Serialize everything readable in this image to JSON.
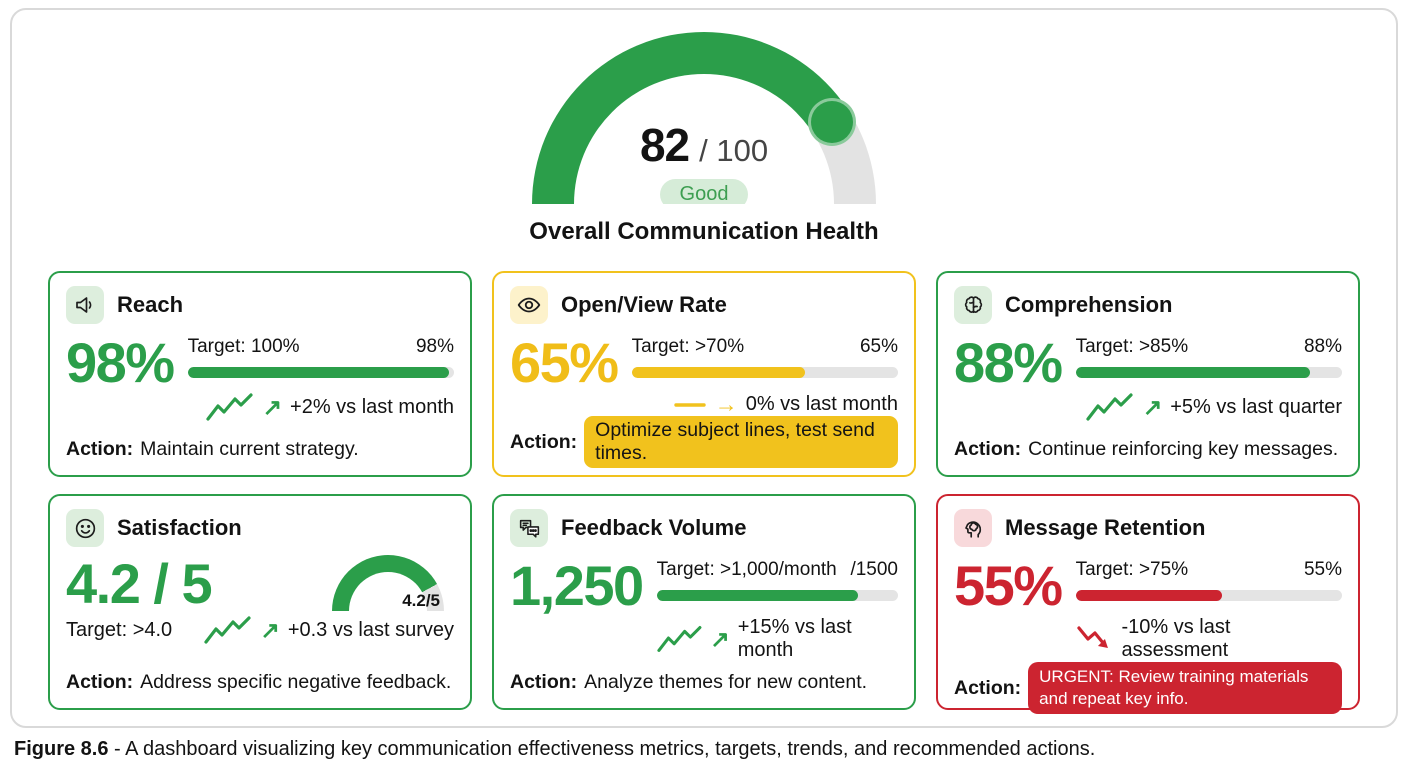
{
  "overall": {
    "score_display": "82",
    "total_display": "/ 100",
    "badge": "Good",
    "title": "Overall Communication Health",
    "percent": 82
  },
  "cards": [
    {
      "title": "Reach",
      "icon": "megaphone-icon",
      "value": "98%",
      "target_label": "Target: 100%",
      "current_label": "98%",
      "progress": 98,
      "trend": "up",
      "trend_label": "+2% vs last month",
      "action_label": "Action:",
      "action_text": "Maintain current strategy.",
      "style": "green"
    },
    {
      "title": "Open/View Rate",
      "icon": "eye-icon",
      "value": "65%",
      "target_label": "Target: >70%",
      "current_label": "65%",
      "progress": 65,
      "trend": "flat",
      "trend_label": "0% vs last month",
      "action_label": "Action:",
      "action_text": "Optimize subject lines, test send times.",
      "style": "yellow"
    },
    {
      "title": "Comprehension",
      "icon": "brain-icon",
      "value": "88%",
      "target_label": "Target: >85%",
      "current_label": "88%",
      "progress": 88,
      "trend": "up",
      "trend_label": "+5% vs last quarter",
      "action_label": "Action:",
      "action_text": "Continue reinforcing key messages.",
      "style": "green"
    },
    {
      "title": "Satisfaction",
      "icon": "smiley-icon",
      "value": "4.2 / 5",
      "target_label": "Target: >4.0",
      "mini_gauge_label": "4.2/5",
      "progress": 84,
      "trend": "up",
      "trend_label": "+0.3 vs last survey",
      "action_label": "Action:",
      "action_text": "Address specific negative feedback.",
      "style": "green"
    },
    {
      "title": "Feedback Volume",
      "icon": "chat-bubbles-icon",
      "value": "1,250",
      "target_label": "Target: >1,000/month",
      "current_label": "/1500",
      "progress": 83.3,
      "trend": "up",
      "trend_label": "+15% vs last month",
      "action_label": "Action:",
      "action_text": "Analyze themes for new content.",
      "style": "green"
    },
    {
      "title": "Message Retention",
      "icon": "head-brain-icon",
      "value": "55%",
      "target_label": "Target: >75%",
      "current_label": "55%",
      "progress": 55,
      "trend": "down",
      "trend_label": "-10% vs last assessment",
      "action_label": "Action:",
      "action_text": "URGENT: Review training materials and repeat key info.",
      "style": "red"
    }
  ],
  "caption": {
    "label": "Figure 8.6",
    "text": " - A dashboard visualizing key communication effectiveness metrics, targets, trends, and recommended actions."
  },
  "colors": {
    "green": "#2b9e4a",
    "yellow": "#f1c21d",
    "red": "#cc2430",
    "track": "#e4e4e4",
    "badge_bg": "#d6ecd8",
    "badge_text": "#3d9e51"
  },
  "chart_data": [
    {
      "type": "gauge",
      "title": "Overall Communication Health",
      "value": 82,
      "max": 100,
      "status_label": "Good",
      "fill_color": "#2b9e4a"
    },
    {
      "type": "bar",
      "title": "Communication effectiveness KPIs",
      "categories": [
        "Reach",
        "Open/View Rate",
        "Comprehension",
        "Satisfaction",
        "Feedback Volume",
        "Message Retention"
      ],
      "values": [
        98,
        65,
        88,
        4.2,
        1250,
        55
      ],
      "value_displays": [
        "98%",
        "65%",
        "88%",
        "4.2 / 5",
        "1,250",
        "55%"
      ],
      "progress_percent": [
        98,
        65,
        88,
        84,
        83.3,
        55
      ],
      "targets": [
        "100%",
        ">70%",
        ">85%",
        ">4.0",
        ">1,000/month (/1500)",
        ">75%"
      ],
      "trends": [
        "+2% vs last month",
        "0% vs last month",
        "+5% vs last quarter",
        "+0.3 vs last survey",
        "+15% vs last month",
        "-10% vs last assessment"
      ],
      "statuses": [
        "green",
        "yellow",
        "green",
        "green",
        "green",
        "red"
      ],
      "actions": [
        "Maintain current strategy.",
        "Optimize subject lines, test send times.",
        "Continue reinforcing key messages.",
        "Address specific negative feedback.",
        "Analyze themes for new content.",
        "URGENT: Review training materials and repeat key info."
      ],
      "legend_position": "none",
      "grid": false
    }
  ]
}
